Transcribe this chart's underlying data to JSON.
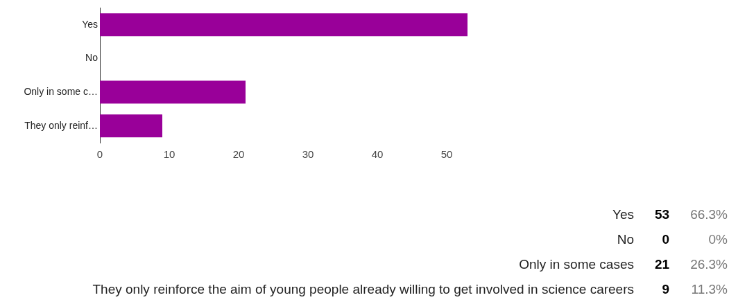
{
  "chart_data": {
    "type": "bar",
    "orientation": "horizontal",
    "categories": [
      "Yes",
      "No",
      "Only in some c…",
      "They only reinf…"
    ],
    "values": [
      53,
      0,
      21,
      9
    ],
    "color": "#990099",
    "xlim": [
      0,
      53
    ],
    "xticks": [
      0,
      10,
      20,
      30,
      40,
      50
    ],
    "grid": false,
    "legend": false,
    "annotations": [
      "Yes",
      "53",
      "66.3%",
      "No",
      "0",
      "0%",
      "Only in some cases",
      "21",
      "26.3%",
      "They only reinforce the aim of young people already willing to get involved in science careers",
      "9",
      "11.3%"
    ]
  }
}
